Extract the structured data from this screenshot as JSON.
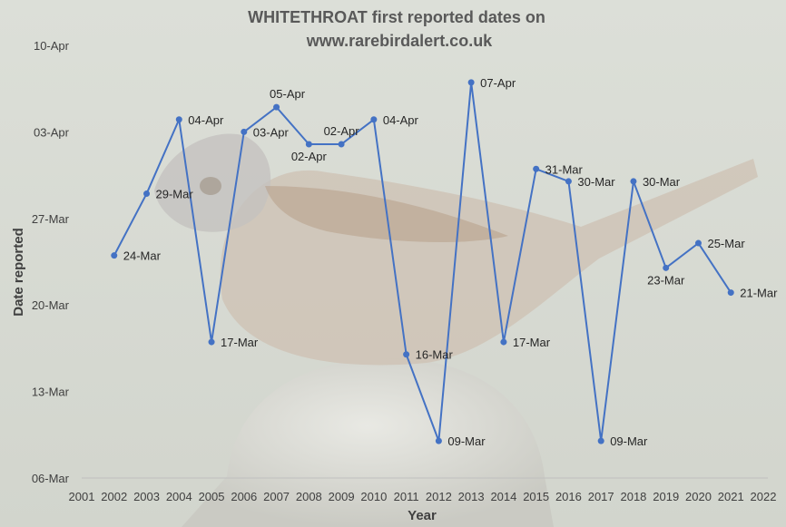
{
  "chart_data": {
    "type": "line",
    "title_line1": "WHITETHROAT first reported dates on",
    "title_line2": "www.rarebirdalert.co.uk",
    "xlabel": "Year",
    "ylabel": "Date reported",
    "xlim": [
      2001,
      2022
    ],
    "x_ticks": [
      2001,
      2002,
      2003,
      2004,
      2005,
      2006,
      2007,
      2008,
      2009,
      2010,
      2011,
      2012,
      2013,
      2014,
      2015,
      2016,
      2017,
      2018,
      2019,
      2020,
      2021,
      2022
    ],
    "y_ticks": [
      "06-Mar",
      "13-Mar",
      "20-Mar",
      "27-Mar",
      "03-Apr",
      "10-Apr"
    ],
    "ylim": [
      "06-Mar",
      "10-Apr"
    ],
    "grid": false,
    "line_color": "#4472c4",
    "points": [
      {
        "x": 2002,
        "y": "24-Mar"
      },
      {
        "x": 2003,
        "y": "29-Mar"
      },
      {
        "x": 2004,
        "y": "04-Apr"
      },
      {
        "x": 2005,
        "y": "17-Mar"
      },
      {
        "x": 2006,
        "y": "03-Apr"
      },
      {
        "x": 2007,
        "y": "05-Apr"
      },
      {
        "x": 2008,
        "y": "02-Apr"
      },
      {
        "x": 2009,
        "y": "02-Apr"
      },
      {
        "x": 2010,
        "y": "04-Apr"
      },
      {
        "x": 2011,
        "y": "16-Mar"
      },
      {
        "x": 2012,
        "y": "09-Mar"
      },
      {
        "x": 2013,
        "y": "07-Apr"
      },
      {
        "x": 2014,
        "y": "17-Mar"
      },
      {
        "x": 2015,
        "y": "31-Mar"
      },
      {
        "x": 2016,
        "y": "30-Mar"
      },
      {
        "x": 2017,
        "y": "09-Mar"
      },
      {
        "x": 2018,
        "y": "30-Mar"
      },
      {
        "x": 2019,
        "y": "23-Mar"
      },
      {
        "x": 2020,
        "y": "25-Mar"
      },
      {
        "x": 2021,
        "y": "21-Mar"
      }
    ]
  }
}
